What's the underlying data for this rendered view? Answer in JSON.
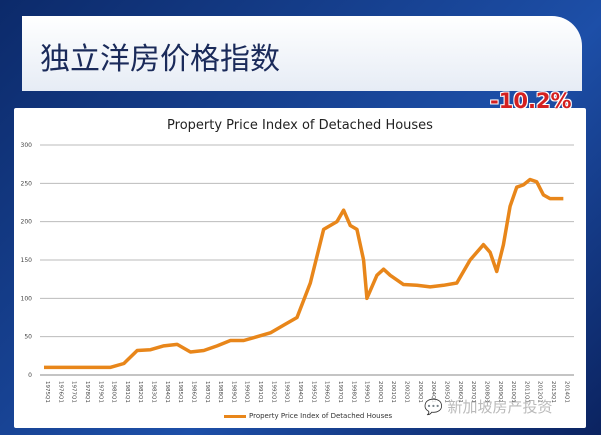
{
  "slide": {
    "title": "独立洋房价格指数",
    "annotation": "-10.2%",
    "watermark": "新加坡房产投资",
    "watermark_icon": "wechat-icon"
  },
  "chart_data": {
    "type": "line",
    "title": "Property Price Index of Detached Houses",
    "xlabel": "",
    "ylabel": "",
    "ylim": [
      0,
      300
    ],
    "yticks": [
      0,
      50,
      100,
      150,
      200,
      250,
      300
    ],
    "grid": true,
    "legend": {
      "position": "bottom",
      "entries": [
        "Property Price Index of Detached Houses"
      ]
    },
    "xticks": [
      "1975Q1",
      "1976Q1",
      "1977Q1",
      "1978Q1",
      "1979Q1",
      "1980Q1",
      "1981Q1",
      "1982Q1",
      "1983Q1",
      "1984Q1",
      "1985Q1",
      "1986Q1",
      "1987Q1",
      "1988Q1",
      "1989Q1",
      "1990Q1",
      "1991Q1",
      "1992Q1",
      "1993Q1",
      "1994Q1",
      "1995Q1",
      "1996Q1",
      "1997Q1",
      "1998Q1",
      "1999Q1",
      "2000Q1",
      "2001Q1",
      "2002Q1",
      "2003Q1",
      "2004Q1",
      "2005Q1",
      "2006Q1",
      "2007Q1",
      "2008Q1",
      "2009Q1",
      "2010Q1",
      "2011Q1",
      "2012Q1",
      "2013Q1",
      "2014Q1"
    ],
    "series": [
      {
        "name": "Property Price Index of Detached Houses",
        "color": "#e8861a",
        "x": [
          1975,
          1980,
          1981,
          1982,
          1983,
          1984,
          1985,
          1986,
          1987,
          1988,
          1989,
          1990,
          1991,
          1992,
          1993,
          1994,
          1995,
          1996,
          1997,
          1997.5,
          1998,
          1998.5,
          1999,
          1999.25,
          2000,
          2000.5,
          2001,
          2002,
          2003,
          2004,
          2005,
          2006,
          2007,
          2008,
          2008.5,
          2009,
          2009.5,
          2010,
          2010.5,
          2011,
          2011.5,
          2012,
          2012.5,
          2013,
          2014
        ],
        "values": [
          10,
          10,
          15,
          32,
          33,
          38,
          40,
          30,
          32,
          38,
          45,
          45,
          50,
          55,
          65,
          75,
          120,
          190,
          200,
          215,
          195,
          190,
          150,
          100,
          130,
          138,
          130,
          118,
          117,
          115,
          117,
          120,
          150,
          170,
          160,
          135,
          170,
          220,
          245,
          248,
          255,
          252,
          235,
          230,
          230
        ]
      }
    ]
  }
}
